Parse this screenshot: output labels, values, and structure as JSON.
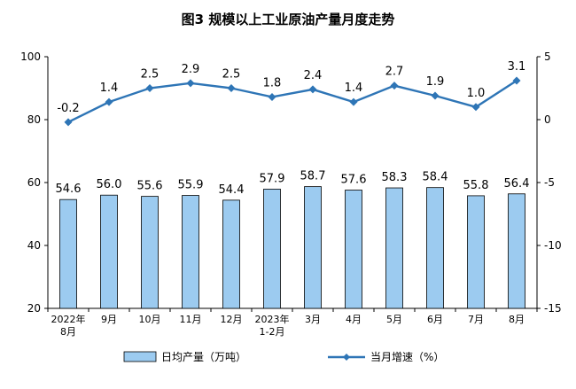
{
  "chart_data": {
    "type": "bar",
    "title": "图3  规模以上工业原油产量月度走势",
    "categories": [
      [
        "2022年",
        "8月"
      ],
      [
        "9月"
      ],
      [
        "10月"
      ],
      [
        "11月"
      ],
      [
        "12月"
      ],
      [
        "2023年",
        "1-2月"
      ],
      [
        "3月"
      ],
      [
        "4月"
      ],
      [
        "5月"
      ],
      [
        "6月"
      ],
      [
        "7月"
      ],
      [
        "8月"
      ]
    ],
    "series": [
      {
        "name": "日均产量（万吨）",
        "type": "bar",
        "axis": "left",
        "values": [
          54.6,
          56.0,
          55.6,
          55.9,
          54.4,
          57.9,
          58.7,
          57.6,
          58.3,
          58.4,
          55.8,
          56.4
        ],
        "labels": [
          "54.6",
          "56.0",
          "55.6",
          "55.9",
          "54.4",
          "57.9",
          "58.7",
          "57.6",
          "58.3",
          "58.4",
          "55.8",
          "56.4"
        ],
        "color": "#9ccbf0",
        "border": "#000000"
      },
      {
        "name": "当月增速（%）",
        "type": "line",
        "axis": "right",
        "values": [
          -0.2,
          1.4,
          2.5,
          2.9,
          2.5,
          1.8,
          2.4,
          1.4,
          2.7,
          1.9,
          1.0,
          3.1
        ],
        "labels": [
          "-0.2",
          "1.4",
          "2.5",
          "2.9",
          "2.5",
          "1.8",
          "2.4",
          "1.4",
          "2.7",
          "1.9",
          "1.0",
          "3.1"
        ],
        "color": "#2e75b6"
      }
    ],
    "y_left": {
      "min": 20,
      "max": 100,
      "ticks": [
        20,
        40,
        60,
        80,
        100
      ]
    },
    "y_right": {
      "min": -15,
      "max": 5,
      "ticks": [
        -15,
        -10,
        -5,
        0,
        5
      ]
    },
    "grid": false,
    "legend": "bottom"
  }
}
